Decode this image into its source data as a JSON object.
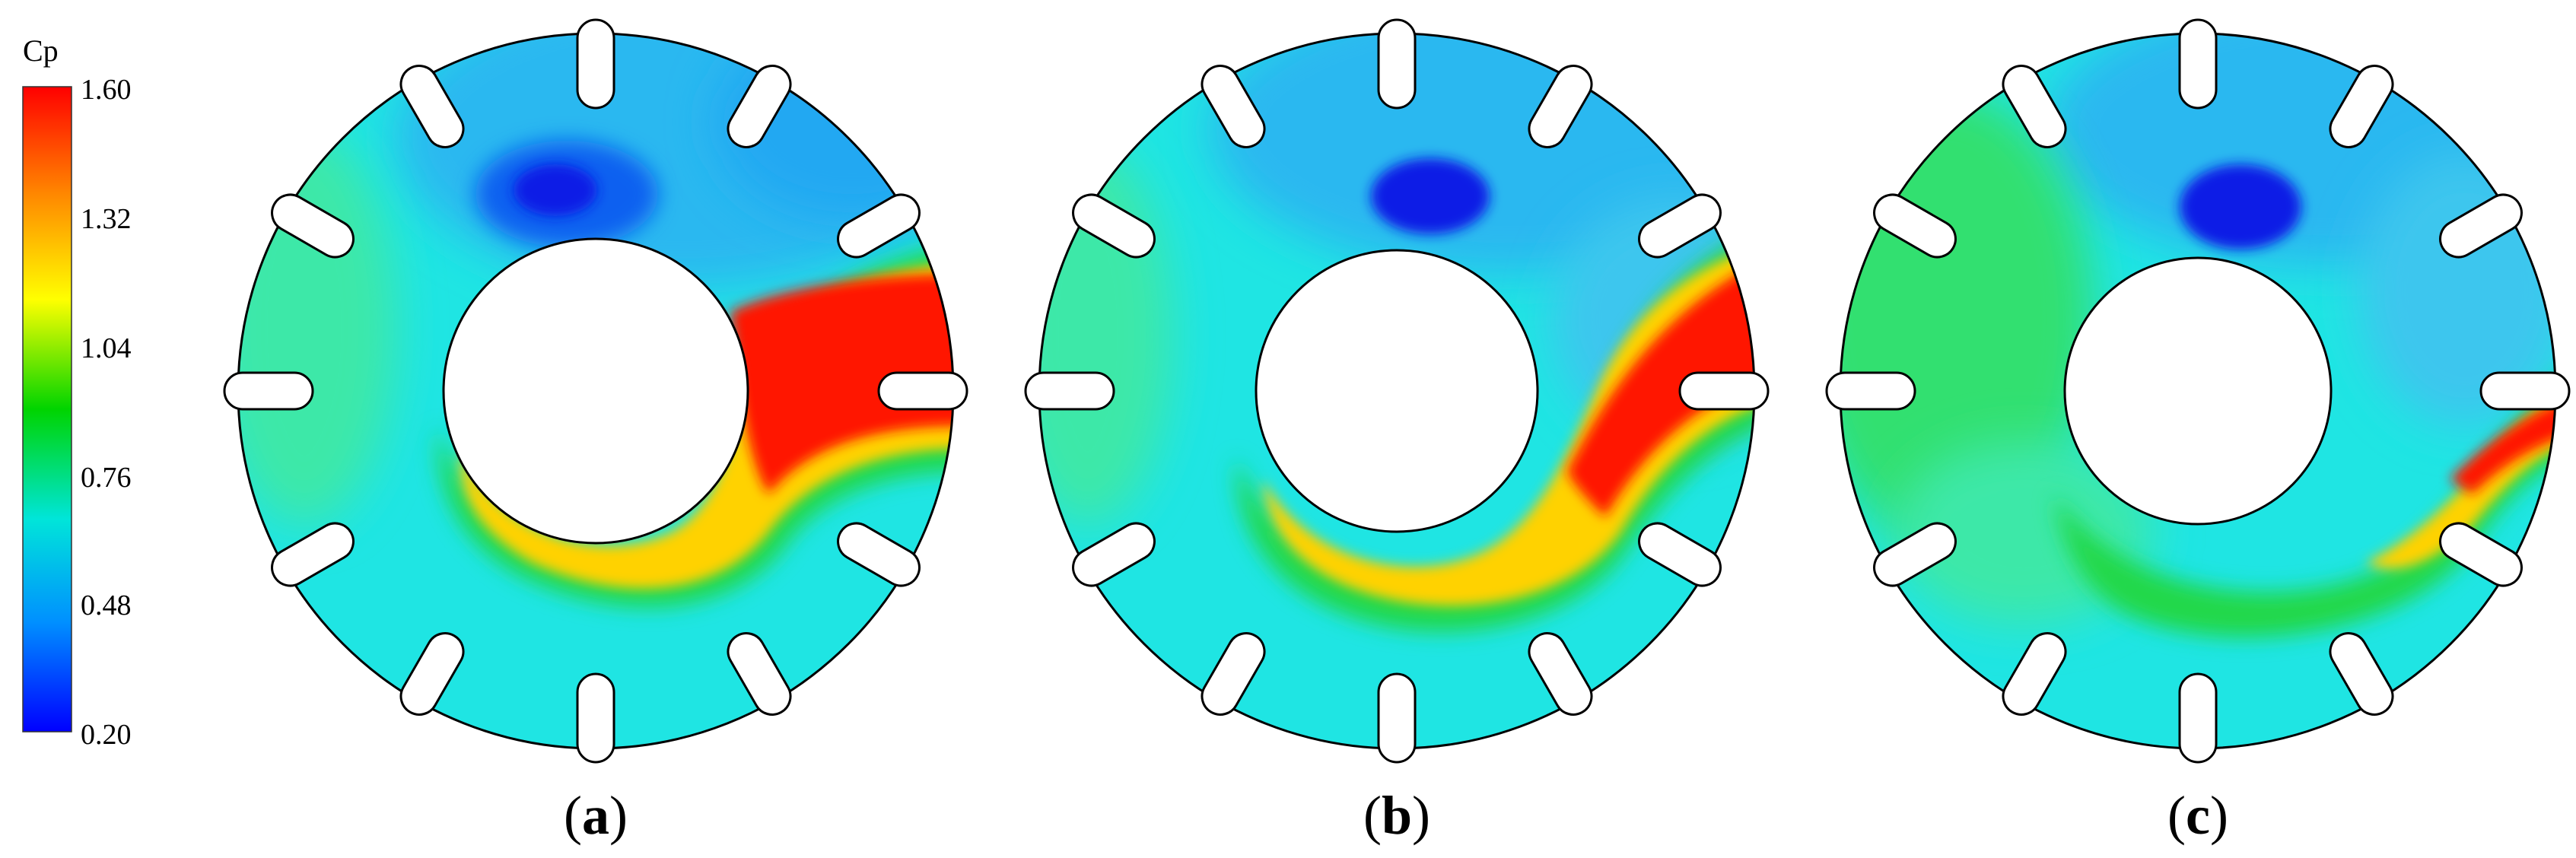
{
  "colorbar": {
    "title": "Cp",
    "ticks": [
      "1.60",
      "1.32",
      "1.04",
      "0.76",
      "0.48",
      "0.20"
    ],
    "colors": [
      "#ff0000",
      "#ff8a00",
      "#ffff00",
      "#00d400",
      "#00e5d9",
      "#0090ff",
      "#0000ff"
    ]
  },
  "panels": [
    {
      "letter": "a",
      "open": "(",
      "close": ")"
    },
    {
      "letter": "b",
      "open": "(",
      "close": ")"
    },
    {
      "letter": "c",
      "open": "(",
      "close": ")"
    }
  ],
  "colors": {
    "background_field": "#1fe5e3",
    "upper_field": "#29b8f0",
    "low_pressure": "#0a1ee6",
    "high_pressure": "#ff1500",
    "mid_pressure": "#ffd200",
    "green_band": "#22d84a",
    "outline": "#000000"
  }
}
